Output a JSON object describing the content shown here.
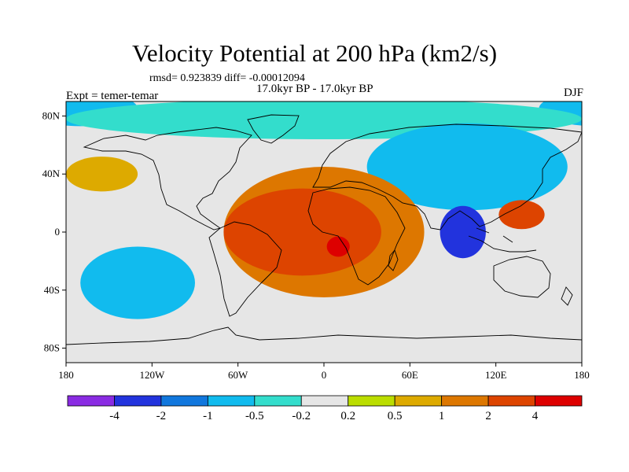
{
  "header": {
    "title": "Velocity Potential at 200 hPa (km2/s)",
    "stats": "rmsd= 0.923839 diff= -0.00012094",
    "period": "17.0kyr BP - 17.0kyr BP",
    "expt": "Expt = temer-temar",
    "season": "DJF"
  },
  "map": {
    "projection": "cylindrical-equidistant",
    "lon_range": [
      -180,
      180
    ],
    "lat_range": [
      -90,
      90
    ],
    "lon_ticks": [
      {
        "value": -180,
        "label": "180"
      },
      {
        "value": -120,
        "label": "120W"
      },
      {
        "value": -60,
        "label": "60W"
      },
      {
        "value": 0,
        "label": "0"
      },
      {
        "value": 60,
        "label": "60E"
      },
      {
        "value": 120,
        "label": "120E"
      },
      {
        "value": 180,
        "label": "180"
      }
    ],
    "lat_ticks": [
      {
        "value": 80,
        "label": "80N"
      },
      {
        "value": 40,
        "label": "40N"
      },
      {
        "value": 0,
        "label": "0"
      },
      {
        "value": -40,
        "label": "40S"
      },
      {
        "value": -80,
        "label": "80S"
      }
    ],
    "background_color": "#e6e6e6",
    "coastline_color": "#000000"
  },
  "colorbar": {
    "boundaries": [
      "-4",
      "-2",
      "-1",
      "-0.5",
      "-0.2",
      "0.2",
      "0.5",
      "1",
      "2",
      "4"
    ],
    "colors": [
      "#8a2be2",
      "#2233dd",
      "#1177dd",
      "#11bbee",
      "#33ddcc",
      "#e6e6e6",
      "#bbdd00",
      "#ddaa00",
      "#dd7700",
      "#dd4400",
      "#dd0000"
    ]
  },
  "fields": [
    {
      "name": "central-pacific-negative",
      "level": -0.5,
      "center": [
        -170,
        85
      ],
      "radius": [
        40,
        12
      ]
    },
    {
      "name": "arctic-cyan-band",
      "level": -0.2,
      "center": [
        0,
        78
      ],
      "radius": [
        180,
        14
      ]
    },
    {
      "name": "asia-negative",
      "level": -0.5,
      "center": [
        100,
        45
      ],
      "radius": [
        70,
        30
      ]
    },
    {
      "name": "indian-ocean-minimum",
      "level": -2,
      "center": [
        97,
        0
      ],
      "radius": [
        16,
        18
      ]
    },
    {
      "name": "south-pacific-negative",
      "level": -0.5,
      "center": [
        -130,
        -35
      ],
      "radius": [
        40,
        25
      ]
    },
    {
      "name": "atlantic-africa-positive",
      "level": 1,
      "center": [
        0,
        0
      ],
      "radius": [
        70,
        45
      ]
    },
    {
      "name": "atlantic-africa-core",
      "level": 2,
      "center": [
        -15,
        0
      ],
      "radius": [
        55,
        30
      ]
    },
    {
      "name": "africa-maximum",
      "level": 4,
      "center": [
        10,
        -10
      ],
      "radius": [
        8,
        7
      ]
    },
    {
      "name": "north-pacific-positive",
      "level": 0.5,
      "center": [
        -155,
        40
      ],
      "radius": [
        25,
        12
      ]
    },
    {
      "name": "western-pacific-maximum",
      "level": 2,
      "center": [
        138,
        12
      ],
      "radius": [
        16,
        10
      ]
    }
  ]
}
